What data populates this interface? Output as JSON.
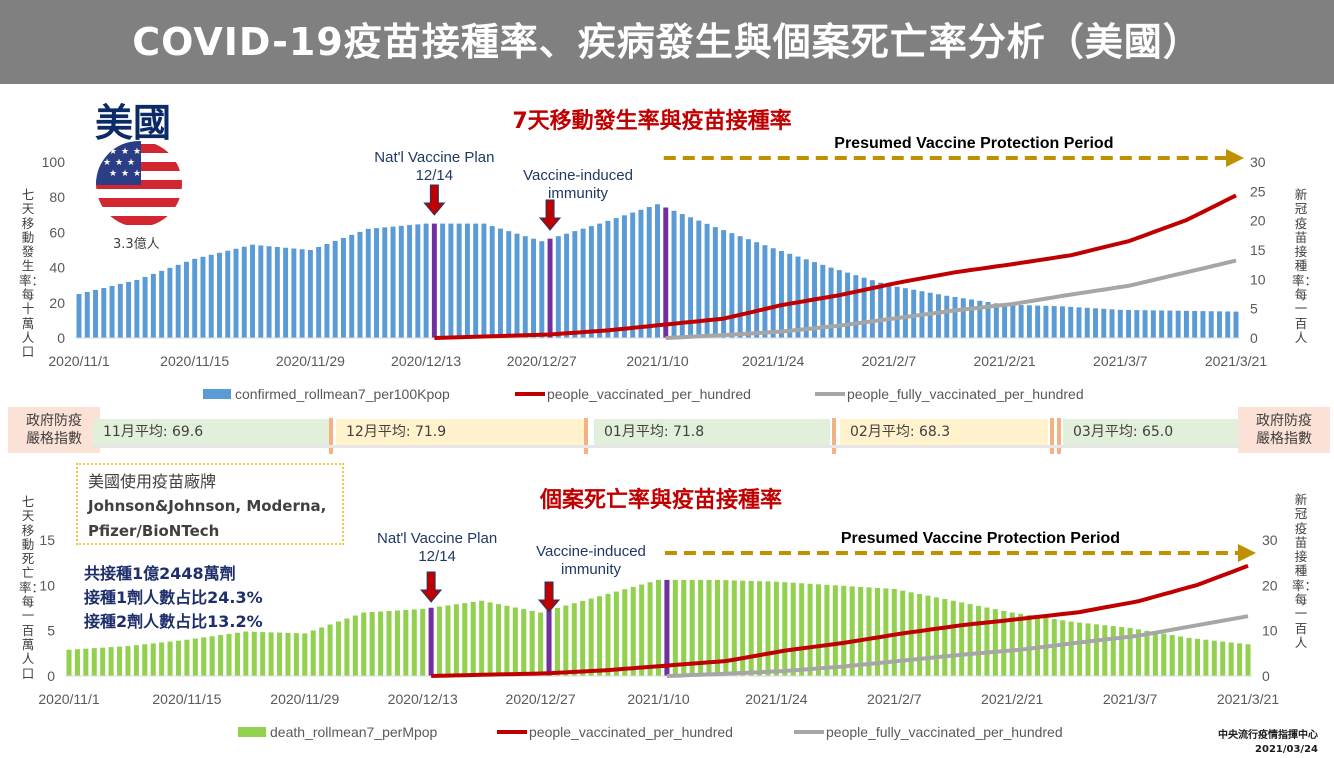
{
  "page": {
    "title": "COVID-19疫苗接種率、疾病發生與個案死亡率分析（美國）",
    "country": "美國",
    "population": "3.3億人",
    "brands": {
      "heading": "美國使用疫苗廠牌",
      "line1": "Johnson&Johnson, Moderna,",
      "line2": "Pfizer/BioNTech"
    },
    "stats": {
      "total": "共接種1億2448萬劑",
      "one_dose": "接種1劑人數占比24.3%",
      "two_dose": "接種2劑人數占比13.2%"
    },
    "strip": {
      "label": "政府防疫\n嚴格指數",
      "months": [
        "11月平均: 69.6",
        "12月平均: 71.9",
        "01月平均: 71.8",
        "02月平均: 68.3",
        "03月平均: 65.0"
      ]
    },
    "source": "中央流行疫情指揮中心",
    "date": "2021/03/24"
  },
  "colors": {
    "banner": "#808080",
    "blue_bar": "#5b9bd5",
    "green_bar": "#92d050",
    "red_line": "#c00000",
    "gray_line": "#a6a6a6",
    "purple": "#7030a0",
    "arrow_gold": "#bf9000",
    "title_red": "#c00000",
    "month_odd": "#e2efda",
    "month_even": "#fff2cc"
  },
  "chart_data": [
    {
      "type": "bar",
      "title": "7天移動發生率與疫苗接種率",
      "ylabel": "七天移動發生率：每十萬人口",
      "y2label": "新冠疫苗接種率：每一百人",
      "ylim": [
        0,
        100
      ],
      "y2lim": [
        0,
        30
      ],
      "yticks": [
        0,
        20,
        40,
        60,
        80,
        100
      ],
      "y2ticks": [
        0,
        5,
        10,
        15,
        20,
        25,
        30
      ],
      "xticks": [
        "2020/11/1",
        "2020/11/15",
        "2020/11/29",
        "2020/12/13",
        "2020/12/27",
        "2021/1/10",
        "2021/1/24",
        "2021/2/7",
        "2021/2/21",
        "2021/3/7",
        "2021/3/21"
      ],
      "annotations": [
        {
          "text": "Nat'l Vaccine Plan\n12/14",
          "date": "2020/12/14"
        },
        {
          "text": "Vaccine-induced\nimmunity",
          "date": "2020/12/28"
        },
        {
          "text": "Presumed Vaccine Protection Period",
          "start": "2021/1/11",
          "end": "2021/3/21"
        }
      ],
      "purple_bar_dates": [
        "2020/12/14",
        "2020/12/28",
        "2021/1/11"
      ],
      "bar_series": {
        "name": "confirmed_rollmean7_per100Kpop",
        "keypoints": [
          [
            "2020/11/1",
            25
          ],
          [
            "2020/11/8",
            33
          ],
          [
            "2020/11/15",
            45
          ],
          [
            "2020/11/22",
            53
          ],
          [
            "2020/11/29",
            50
          ],
          [
            "2020/12/6",
            62
          ],
          [
            "2020/12/13",
            65
          ],
          [
            "2020/12/20",
            65
          ],
          [
            "2020/12/27",
            55
          ],
          [
            "2021/1/3",
            65
          ],
          [
            "2021/1/10",
            76
          ],
          [
            "2021/1/17",
            63
          ],
          [
            "2021/1/24",
            51
          ],
          [
            "2021/1/31",
            40
          ],
          [
            "2021/2/7",
            30
          ],
          [
            "2021/2/14",
            24
          ],
          [
            "2021/2/21",
            19
          ],
          [
            "2021/2/28",
            18
          ],
          [
            "2021/3/7",
            16
          ],
          [
            "2021/3/14",
            15.5
          ],
          [
            "2021/3/21",
            15
          ]
        ]
      },
      "line_series": [
        {
          "name": "people_vaccinated_per_hundred",
          "keypoints": [
            [
              "2020/12/14",
              0
            ],
            [
              "2020/12/21",
              0.3
            ],
            [
              "2020/12/28",
              0.6
            ],
            [
              "2021/1/4",
              1.3
            ],
            [
              "2021/1/11",
              2.3
            ],
            [
              "2021/1/18",
              3.3
            ],
            [
              "2021/1/25",
              5.6
            ],
            [
              "2021/2/1",
              7.3
            ],
            [
              "2021/2/8",
              9.4
            ],
            [
              "2021/2/15",
              11.2
            ],
            [
              "2021/2/22",
              12.6
            ],
            [
              "2021/3/1",
              14.1
            ],
            [
              "2021/3/8",
              16.5
            ],
            [
              "2021/3/15",
              20.1
            ],
            [
              "2021/3/21",
              24.3
            ]
          ]
        },
        {
          "name": "people_fully_vaccinated_per_hundred",
          "keypoints": [
            [
              "2021/1/11",
              0
            ],
            [
              "2021/1/18",
              0.5
            ],
            [
              "2021/1/25",
              1.1
            ],
            [
              "2021/2/1",
              2.1
            ],
            [
              "2021/2/8",
              3.4
            ],
            [
              "2021/2/15",
              4.7
            ],
            [
              "2021/2/22",
              5.8
            ],
            [
              "2021/3/1",
              7.4
            ],
            [
              "2021/3/8",
              8.9
            ],
            [
              "2021/3/15",
              11.2
            ],
            [
              "2021/3/21",
              13.2
            ]
          ]
        }
      ]
    },
    {
      "type": "bar",
      "title": "個案死亡率與疫苗接種率",
      "ylabel": "七天移動死亡率：每一百萬人口",
      "y2label": "新冠疫苗接種率：每一百人",
      "ylim": [
        0,
        15
      ],
      "y2lim": [
        0,
        30
      ],
      "yticks": [
        0,
        5,
        10,
        15
      ],
      "y2ticks": [
        0,
        10,
        20,
        30
      ],
      "xticks": [
        "2020/11/1",
        "2020/11/15",
        "2020/11/29",
        "2020/12/13",
        "2020/12/27",
        "2021/1/10",
        "2021/1/24",
        "2021/2/7",
        "2021/2/21",
        "2021/3/7",
        "2021/3/21"
      ],
      "annotations": [
        {
          "text": "Nat'l Vaccine Plan\n12/14",
          "date": "2020/12/14"
        },
        {
          "text": "Vaccine-induced\nimmunity",
          "date": "2020/12/28"
        },
        {
          "text": "Presumed Vaccine Protection Period",
          "start": "2021/1/11",
          "end": "2021/3/21"
        }
      ],
      "purple_bar_dates": [
        "2020/12/14",
        "2020/12/28",
        "2021/1/11"
      ],
      "bar_series": {
        "name": "death_rollmean7_perMpop",
        "keypoints": [
          [
            "2020/11/1",
            2.9
          ],
          [
            "2020/11/8",
            3.3
          ],
          [
            "2020/11/15",
            4.0
          ],
          [
            "2020/11/22",
            4.9
          ],
          [
            "2020/11/29",
            4.7
          ],
          [
            "2020/12/6",
            7.0
          ],
          [
            "2020/12/13",
            7.4
          ],
          [
            "2020/12/20",
            8.3
          ],
          [
            "2020/12/27",
            7.0
          ],
          [
            "2021/1/3",
            8.8
          ],
          [
            "2021/1/10",
            10.6
          ],
          [
            "2021/1/17",
            10.6
          ],
          [
            "2021/1/24",
            10.4
          ],
          [
            "2021/1/31",
            10.0
          ],
          [
            "2021/2/7",
            9.6
          ],
          [
            "2021/2/14",
            8.3
          ],
          [
            "2021/2/21",
            7.0
          ],
          [
            "2021/2/28",
            6.0
          ],
          [
            "2021/3/7",
            5.3
          ],
          [
            "2021/3/14",
            4.2
          ],
          [
            "2021/3/21",
            3.5
          ]
        ]
      },
      "line_series": [
        {
          "name": "people_vaccinated_per_hundred",
          "keypoints": [
            [
              "2020/12/14",
              0
            ],
            [
              "2020/12/21",
              0.3
            ],
            [
              "2020/12/28",
              0.6
            ],
            [
              "2021/1/4",
              1.3
            ],
            [
              "2021/1/11",
              2.3
            ],
            [
              "2021/1/18",
              3.3
            ],
            [
              "2021/1/25",
              5.6
            ],
            [
              "2021/2/1",
              7.3
            ],
            [
              "2021/2/8",
              9.4
            ],
            [
              "2021/2/15",
              11.2
            ],
            [
              "2021/2/22",
              12.6
            ],
            [
              "2021/3/1",
              14.1
            ],
            [
              "2021/3/8",
              16.5
            ],
            [
              "2021/3/15",
              20.1
            ],
            [
              "2021/3/21",
              24.3
            ]
          ]
        },
        {
          "name": "people_fully_vaccinated_per_hundred",
          "keypoints": [
            [
              "2021/1/11",
              0
            ],
            [
              "2021/1/18",
              0.5
            ],
            [
              "2021/1/25",
              1.1
            ],
            [
              "2021/2/1",
              2.1
            ],
            [
              "2021/2/8",
              3.4
            ],
            [
              "2021/2/15",
              4.7
            ],
            [
              "2021/2/22",
              5.8
            ],
            [
              "2021/3/1",
              7.4
            ],
            [
              "2021/3/8",
              8.9
            ],
            [
              "2021/3/15",
              11.2
            ],
            [
              "2021/3/21",
              13.2
            ]
          ]
        }
      ]
    }
  ]
}
